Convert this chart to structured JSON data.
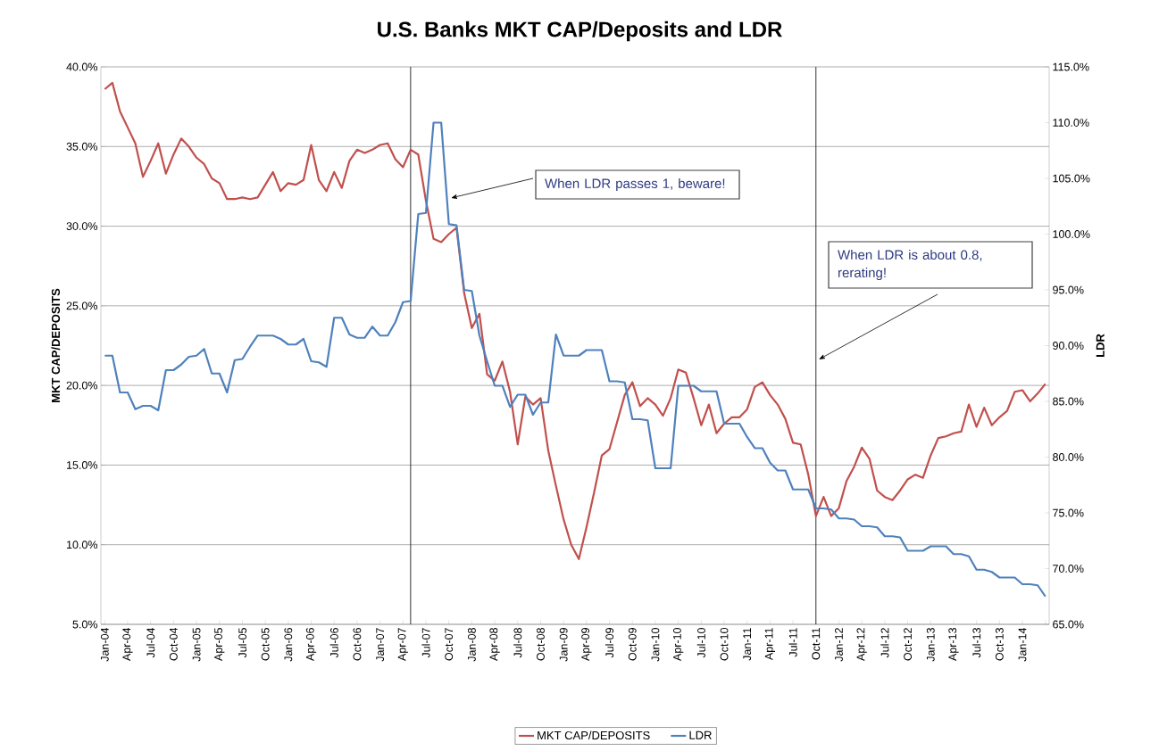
{
  "chart_data": {
    "type": "line",
    "title": "U.S. Banks MKT CAP/Deposits and LDR",
    "ylabel": "MKT CAP/DEPOSITS",
    "y2label": "LDR",
    "x": [
      "2004-01",
      "2004-02",
      "2004-03",
      "2004-04",
      "2004-05",
      "2004-06",
      "2004-07",
      "2004-08",
      "2004-09",
      "2004-10",
      "2004-11",
      "2004-12",
      "2005-01",
      "2005-02",
      "2005-03",
      "2005-04",
      "2005-05",
      "2005-06",
      "2005-07",
      "2005-08",
      "2005-09",
      "2005-10",
      "2005-11",
      "2005-12",
      "2006-01",
      "2006-02",
      "2006-03",
      "2006-04",
      "2006-05",
      "2006-06",
      "2006-07",
      "2006-08",
      "2006-09",
      "2006-10",
      "2006-11",
      "2006-12",
      "2007-01",
      "2007-02",
      "2007-03",
      "2007-04",
      "2007-05",
      "2007-06",
      "2007-07",
      "2007-08",
      "2007-09",
      "2007-10",
      "2007-11",
      "2007-12",
      "2008-01",
      "2008-02",
      "2008-03",
      "2008-04",
      "2008-05",
      "2008-06",
      "2008-07",
      "2008-08",
      "2008-09",
      "2008-10",
      "2008-11",
      "2008-12",
      "2009-01",
      "2009-02",
      "2009-03",
      "2009-04",
      "2009-05",
      "2009-06",
      "2009-07",
      "2009-08",
      "2009-09",
      "2009-10",
      "2009-11",
      "2009-12",
      "2010-01",
      "2010-02",
      "2010-03",
      "2010-04",
      "2010-05",
      "2010-06",
      "2010-07",
      "2010-08",
      "2010-09",
      "2010-10",
      "2010-11",
      "2010-12",
      "2011-01",
      "2011-02",
      "2011-03",
      "2011-04",
      "2011-05",
      "2011-06",
      "2011-07",
      "2011-08",
      "2011-09",
      "2011-10",
      "2011-11",
      "2011-12",
      "2012-01",
      "2012-02",
      "2012-03",
      "2012-04",
      "2012-05",
      "2012-06",
      "2012-07",
      "2012-08",
      "2012-09",
      "2012-10",
      "2012-11",
      "2012-12",
      "2013-01",
      "2013-02",
      "2013-03",
      "2013-04",
      "2013-05",
      "2013-06",
      "2013-07",
      "2013-08",
      "2013-09",
      "2013-10",
      "2013-11",
      "2013-12",
      "2014-01",
      "2014-02",
      "2014-03",
      "2014-04"
    ],
    "series": [
      {
        "name": "MKT CAP/DEPOSITS",
        "color": "#c0504d",
        "values": [
          38.6,
          39.0,
          37.2,
          36.2,
          35.2,
          33.1,
          34.1,
          35.2,
          33.3,
          34.5,
          35.5,
          35.0,
          34.3,
          33.9,
          33.0,
          32.7,
          31.7,
          31.7,
          31.8,
          31.7,
          31.8,
          32.6,
          33.4,
          32.2,
          32.7,
          32.6,
          32.9,
          35.1,
          32.9,
          32.2,
          33.4,
          32.4,
          34.1,
          34.8,
          34.6,
          34.8,
          35.1,
          35.2,
          34.2,
          33.7,
          34.8,
          34.5,
          31.6,
          29.2,
          29.0,
          29.5,
          29.9,
          25.8,
          23.6,
          24.5,
          20.7,
          20.3,
          21.5,
          19.6,
          16.3,
          19.3,
          18.8,
          19.2,
          15.9,
          13.7,
          11.6,
          10.0,
          9.1,
          11.1,
          13.3,
          15.6,
          16.0,
          17.7,
          19.4,
          20.2,
          18.7,
          19.2,
          18.8,
          18.1,
          19.2,
          21.0,
          20.8,
          19.2,
          17.5,
          18.8,
          17.0,
          17.6,
          18.0,
          18.0,
          18.5,
          19.9,
          20.2,
          19.4,
          18.8,
          17.9,
          16.4,
          16.3,
          14.4,
          11.8,
          13.0,
          11.8,
          12.3,
          14.0,
          14.9,
          16.1,
          15.4,
          13.4,
          13.0,
          12.8,
          13.4,
          14.1,
          14.4,
          14.2,
          15.6,
          16.7,
          16.8,
          17.0,
          17.1,
          18.8,
          17.4,
          18.6,
          17.5,
          18.0,
          18.4,
          19.6,
          19.7,
          19.0,
          19.5,
          20.1
        ]
      },
      {
        "name": "LDR",
        "color": "#4f81bd",
        "axis": "y2",
        "values": [
          89.1,
          89.1,
          85.8,
          85.8,
          84.3,
          84.6,
          84.6,
          84.2,
          87.8,
          87.8,
          88.3,
          89.0,
          89.1,
          89.7,
          87.5,
          87.5,
          85.8,
          88.7,
          88.8,
          89.9,
          90.9,
          90.9,
          90.9,
          90.6,
          90.1,
          90.1,
          90.6,
          88.6,
          88.5,
          88.1,
          92.5,
          92.5,
          91.0,
          90.7,
          90.7,
          91.7,
          90.9,
          90.9,
          92.1,
          93.9,
          94.0,
          101.8,
          101.9,
          110.0,
          110.0,
          100.9,
          100.8,
          95.0,
          94.9,
          90.9,
          88.6,
          86.4,
          86.4,
          84.5,
          85.6,
          85.6,
          83.8,
          84.9,
          84.9,
          91.0,
          89.1,
          89.1,
          89.1,
          89.6,
          89.6,
          89.6,
          86.8,
          86.8,
          86.7,
          83.4,
          83.4,
          83.3,
          79.0,
          79.0,
          79.0,
          86.4,
          86.4,
          86.4,
          85.9,
          85.9,
          85.9,
          83.0,
          83.0,
          83.0,
          81.8,
          80.8,
          80.8,
          79.5,
          78.8,
          78.8,
          77.1,
          77.1,
          77.1,
          75.4,
          75.4,
          75.3,
          74.5,
          74.5,
          74.4,
          73.8,
          73.8,
          73.7,
          72.9,
          72.9,
          72.8,
          71.6,
          71.6,
          71.6,
          72.0,
          72.0,
          72.0,
          71.3,
          71.3,
          71.1,
          69.9,
          69.9,
          69.7,
          69.2,
          69.2,
          69.2,
          68.6,
          68.6,
          68.5,
          67.5
        ]
      }
    ],
    "xlim": [
      "2004-01",
      "2014-04"
    ],
    "xticks": [
      {
        "value": "2004-01",
        "label": "Jan-04"
      },
      {
        "value": "2004-04",
        "label": "Apr-04"
      },
      {
        "value": "2004-07",
        "label": "Jul-04"
      },
      {
        "value": "2004-10",
        "label": "Oct-04"
      },
      {
        "value": "2005-01",
        "label": "Jan-05"
      },
      {
        "value": "2005-04",
        "label": "Apr-05"
      },
      {
        "value": "2005-07",
        "label": "Jul-05"
      },
      {
        "value": "2005-10",
        "label": "Oct-05"
      },
      {
        "value": "2006-01",
        "label": "Jan-06"
      },
      {
        "value": "2006-04",
        "label": "Apr-06"
      },
      {
        "value": "2006-07",
        "label": "Jul-06"
      },
      {
        "value": "2006-10",
        "label": "Oct-06"
      },
      {
        "value": "2007-01",
        "label": "Jan-07"
      },
      {
        "value": "2007-04",
        "label": "Apr-07"
      },
      {
        "value": "2007-07",
        "label": "Jul-07"
      },
      {
        "value": "2007-10",
        "label": "Oct-07"
      },
      {
        "value": "2008-01",
        "label": "Jan-08"
      },
      {
        "value": "2008-04",
        "label": "Apr-08"
      },
      {
        "value": "2008-07",
        "label": "Jul-08"
      },
      {
        "value": "2008-10",
        "label": "Oct-08"
      },
      {
        "value": "2009-01",
        "label": "Jan-09"
      },
      {
        "value": "2009-04",
        "label": "Apr-09"
      },
      {
        "value": "2009-07",
        "label": "Jul-09"
      },
      {
        "value": "2009-10",
        "label": "Oct-09"
      },
      {
        "value": "2010-01",
        "label": "Jan-10"
      },
      {
        "value": "2010-04",
        "label": "Apr-10"
      },
      {
        "value": "2010-07",
        "label": "Jul-10"
      },
      {
        "value": "2010-10",
        "label": "Oct-10"
      },
      {
        "value": "2011-01",
        "label": "Jan-11"
      },
      {
        "value": "2011-04",
        "label": "Apr-11"
      },
      {
        "value": "2011-07",
        "label": "Jul-11"
      },
      {
        "value": "2011-10",
        "label": "Oct-11"
      },
      {
        "value": "2012-01",
        "label": "Jan-12"
      },
      {
        "value": "2012-04",
        "label": "Apr-12"
      },
      {
        "value": "2012-07",
        "label": "Jul-12"
      },
      {
        "value": "2012-10",
        "label": "Oct-12"
      },
      {
        "value": "2013-01",
        "label": "Jan-13"
      },
      {
        "value": "2013-04",
        "label": "Apr-13"
      },
      {
        "value": "2013-07",
        "label": "Jul-13"
      },
      {
        "value": "2013-10",
        "label": "Oct-13"
      },
      {
        "value": "2014-01",
        "label": "Jan-14"
      },
      {
        "value": "2014-04",
        "label": null
      }
    ],
    "ylim": [
      5,
      40
    ],
    "yticks": [
      {
        "value": 5,
        "label": "5.0%"
      },
      {
        "value": 10,
        "label": "10.0%"
      },
      {
        "value": 15,
        "label": "15.0%"
      },
      {
        "value": 20,
        "label": "20.0%"
      },
      {
        "value": 25,
        "label": "25.0%"
      },
      {
        "value": 30,
        "label": "30.0%"
      },
      {
        "value": 35,
        "label": "35.0%"
      },
      {
        "value": 40,
        "label": "40.0%"
      }
    ],
    "y2lim": [
      65,
      115
    ],
    "y2ticks": [
      {
        "value": 65,
        "label": "65.0%"
      },
      {
        "value": 70,
        "label": "70.0%"
      },
      {
        "value": 75,
        "label": "75.0%"
      },
      {
        "value": 80,
        "label": "80.0%"
      },
      {
        "value": 85,
        "label": "85.0%"
      },
      {
        "value": 90,
        "label": "90.0%"
      },
      {
        "value": 95,
        "label": "95.0%"
      },
      {
        "value": 100,
        "label": "100.0%"
      },
      {
        "value": 105,
        "label": "105.0%"
      },
      {
        "value": 110,
        "label": "110.0%"
      },
      {
        "value": 115,
        "label": "115.0%"
      }
    ],
    "ref_lines": [
      {
        "axis": "x",
        "value": "2007-05",
        "color": "#000000"
      },
      {
        "axis": "x",
        "value": "2011-10",
        "color": "#000000"
      }
    ],
    "annotations": [
      "When LDR passes 1, beware!",
      "When LDR is about 0.8, rerating!"
    ],
    "grid": "y",
    "legend": "bottom"
  }
}
